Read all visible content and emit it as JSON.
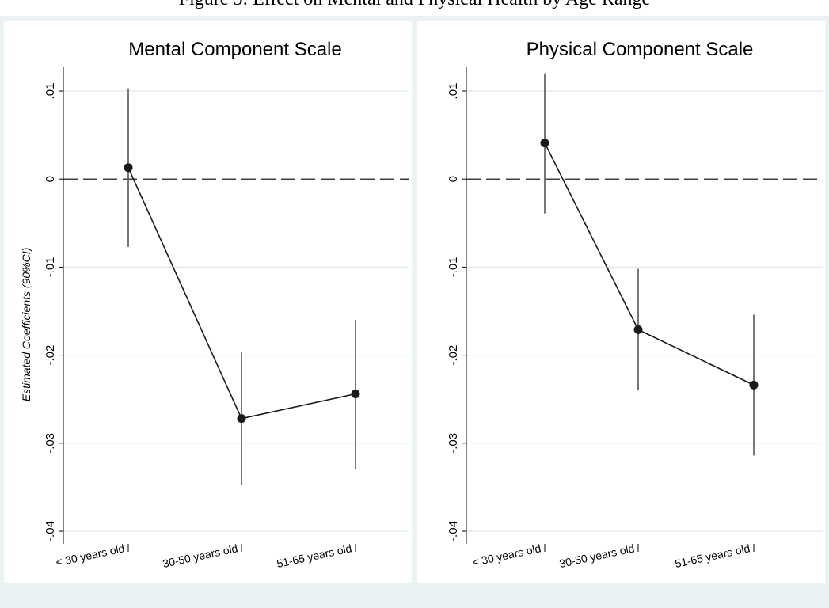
{
  "caption": "Figure 3: Effect on Mental and Physical Health by Age Range",
  "colors": {
    "background": "#ffffff",
    "panel_background": "#eaf2f3",
    "plot_background": "#ffffff",
    "gridline": "#e0e7ea",
    "line": "#1a1a1a",
    "ci": "#555555",
    "reference_line": "#000000"
  },
  "chart_data": [
    {
      "type": "scatter",
      "title": "Mental Component Scale",
      "ylabel": "Estimated Coefficients (90%CI)",
      "xlabel": "",
      "categories": [
        "< 30 years old",
        "30-50 years old",
        "51-65 years old"
      ],
      "values": [
        0.0013,
        -0.0272,
        -0.0244
      ],
      "ci_lower": [
        -0.0077,
        -0.0347,
        -0.0329
      ],
      "ci_upper": [
        0.0103,
        -0.0196,
        -0.016
      ],
      "ylim": [
        -0.04,
        0.01
      ],
      "yticks": [
        0.01,
        0,
        -0.01,
        -0.02,
        -0.03,
        -0.04
      ],
      "ytick_labels": [
        ".01",
        "0",
        "-.01",
        "-.02",
        "-.03",
        "-.04"
      ],
      "reference_line": 0,
      "grid": true,
      "connected": true
    },
    {
      "type": "scatter",
      "title": "Physical Component Scale",
      "ylabel": "",
      "xlabel": "",
      "categories": [
        "< 30 years old",
        "30-50 years old",
        "51-65 years old"
      ],
      "values": [
        0.0041,
        -0.0171,
        -0.0234
      ],
      "ci_lower": [
        -0.0039,
        -0.024,
        -0.0314
      ],
      "ci_upper": [
        0.012,
        -0.0102,
        -0.0154
      ],
      "ylim": [
        -0.04,
        0.01
      ],
      "yticks": [
        0.01,
        0,
        -0.01,
        -0.02,
        -0.03,
        -0.04
      ],
      "ytick_labels": [
        ".01",
        "0",
        "-.01",
        "-.02",
        "-.03",
        "-.04"
      ],
      "reference_line": 0,
      "grid": true,
      "connected": true
    }
  ]
}
